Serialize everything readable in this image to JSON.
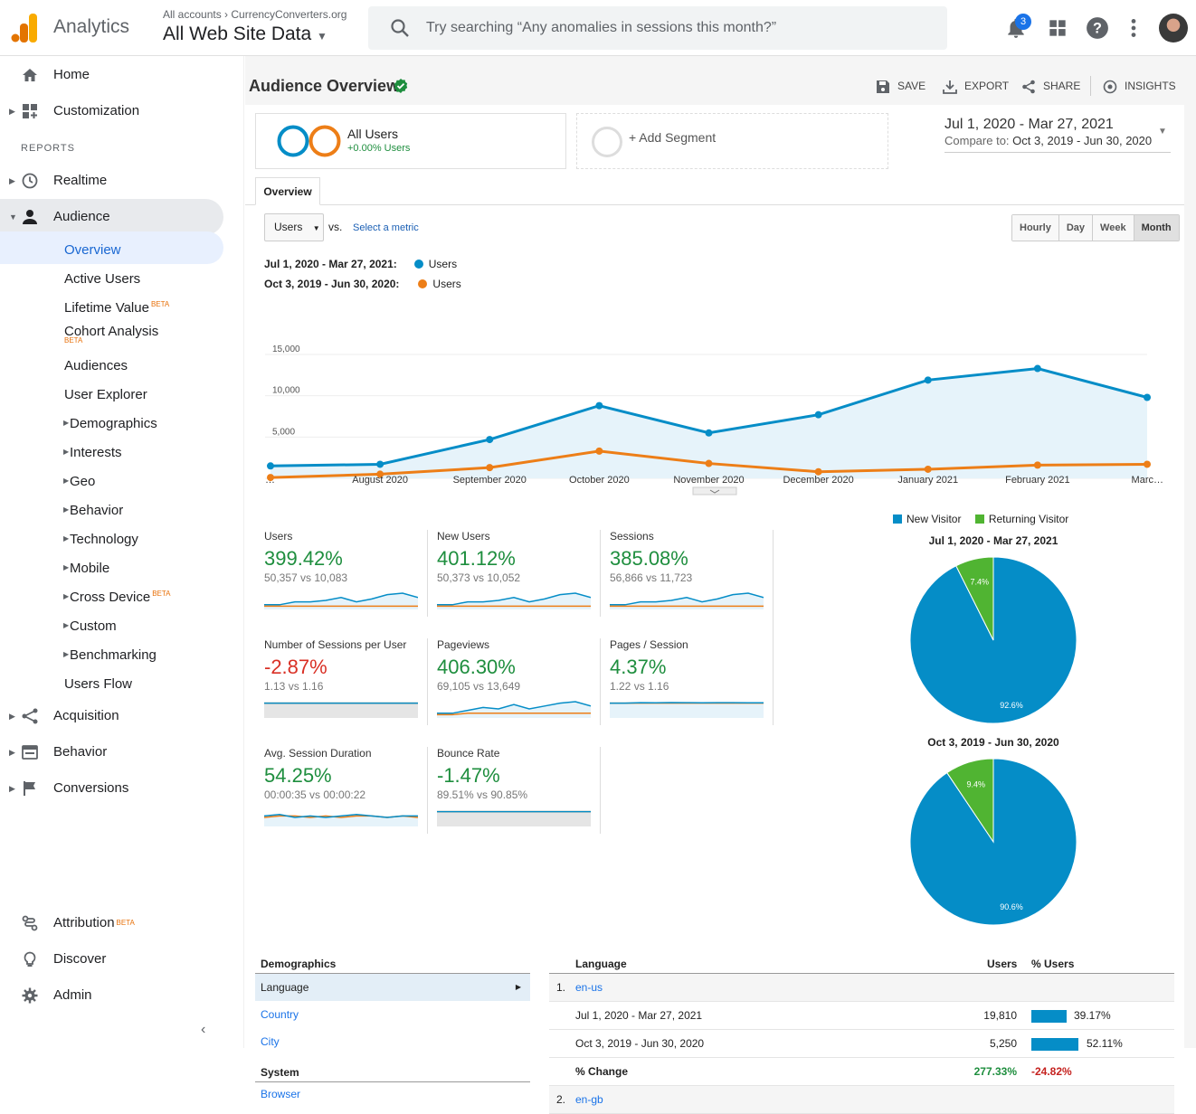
{
  "topbar": {
    "brand": "Analytics",
    "account_crumb": "All accounts › CurrencyConverters.org",
    "view_name": "All Web Site Data",
    "search_placeholder": "Try searching “Any anomalies in sessions this month?”",
    "notif_count": "3"
  },
  "sidebar": {
    "home": "Home",
    "customization": "Customization",
    "reports_heading": "REPORTS",
    "realtime": "Realtime",
    "audience": "Audience",
    "audience_items": [
      {
        "label": "Overview"
      },
      {
        "label": "Active Users"
      },
      {
        "label": "Lifetime Value",
        "beta": "BETA"
      },
      {
        "label": "Cohort Analysis",
        "beta": "BETA"
      },
      {
        "label": "Audiences"
      },
      {
        "label": "User Explorer"
      },
      {
        "label": "Demographics"
      },
      {
        "label": "Interests"
      },
      {
        "label": "Geo"
      },
      {
        "label": "Behavior"
      },
      {
        "label": "Technology"
      },
      {
        "label": "Mobile"
      },
      {
        "label": "Cross Device",
        "beta": "BETA"
      },
      {
        "label": "Custom"
      },
      {
        "label": "Benchmarking"
      },
      {
        "label": "Users Flow"
      }
    ],
    "acquisition": "Acquisition",
    "behavior": "Behavior",
    "conversions": "Conversions",
    "attribution": "Attribution",
    "attribution_beta": "BETA",
    "discover": "Discover",
    "admin": "Admin"
  },
  "page": {
    "title": "Audience Overview",
    "actions": {
      "save": "SAVE",
      "export": "EXPORT",
      "share": "SHARE",
      "insights": "INSIGHTS"
    }
  },
  "segments": {
    "all_users": "All Users",
    "all_users_sub": "+0.00% Users",
    "add_segment": "+ Add Segment"
  },
  "daterange": {
    "main": "Jul 1, 2020 - Mar 27, 2021",
    "compare_label": "Compare to:",
    "compare": "Oct 3, 2019 - Jun 30, 2020"
  },
  "tabs": {
    "overview": "Overview"
  },
  "controls": {
    "metric": "Users",
    "vs": "vs.",
    "select_metric": "Select a metric",
    "granularity": [
      "Hourly",
      "Day",
      "Week",
      "Month"
    ]
  },
  "legend": [
    {
      "range": "Jul 1, 2020 - Mar 27, 2021:",
      "series": "Users",
      "color": "#058dc7"
    },
    {
      "range": "Oct 3, 2019 - Jun 30, 2020:",
      "series": "Users",
      "color": "#ed7e17"
    }
  ],
  "chart_data": {
    "type": "line",
    "x": [
      "…",
      "August 2020",
      "September 2020",
      "October 2020",
      "November 2020",
      "December 2020",
      "January 2021",
      "February 2021",
      "Marc…"
    ],
    "series": [
      {
        "name": "Users",
        "values": [
          1500,
          1700,
          4700,
          8800,
          5500,
          7700,
          11900,
          13300,
          9800
        ]
      },
      {
        "name": "Users",
        "values": [
          100,
          500,
          1300,
          3300,
          1800,
          800,
          1100,
          1600,
          1700
        ]
      }
    ],
    "y_ticks": [
      "15,000",
      "10,000",
      "5,000"
    ],
    "ylim": [
      0,
      15000
    ]
  },
  "metrics": [
    {
      "title": "Users",
      "value": "399.42%",
      "sub": "50,357 vs 10,083",
      "color": "#1e8e3e",
      "spark": [
        [
          2,
          2,
          4,
          4,
          5,
          7,
          4,
          6,
          9,
          10,
          7
        ],
        [
          1,
          1,
          1,
          1,
          1,
          1,
          1,
          1,
          1,
          1,
          1
        ]
      ]
    },
    {
      "title": "New Users",
      "value": "401.12%",
      "sub": "50,373 vs 10,052",
      "color": "#1e8e3e",
      "spark": [
        [
          2,
          2,
          4,
          4,
          5,
          7,
          4,
          6,
          9,
          10,
          7
        ],
        [
          1,
          1,
          1,
          1,
          1,
          1,
          1,
          1,
          1,
          1,
          1
        ]
      ]
    },
    {
      "title": "Sessions",
      "value": "385.08%",
      "sub": "56,866 vs 11,723",
      "color": "#1e8e3e",
      "spark": [
        [
          2,
          2,
          4,
          4,
          5,
          7,
          4,
          6,
          9,
          10,
          7
        ],
        [
          1,
          1,
          1,
          1,
          1,
          1,
          1,
          1,
          1,
          1,
          1
        ]
      ]
    },
    {
      "title": "Number of Sessions per User",
      "value": "-2.87%",
      "sub": "1.13 vs 1.16",
      "color": "#d93025",
      "spark": [
        [
          9,
          9,
          9,
          9,
          9,
          9,
          9,
          9,
          9,
          9,
          9
        ],
        [
          9,
          9,
          9,
          9,
          9,
          9,
          9,
          9,
          9,
          9,
          9
        ]
      ]
    },
    {
      "title": "Pageviews",
      "value": "406.30%",
      "sub": "69,105 vs 13,649",
      "color": "#1e8e3e",
      "spark": [
        [
          2,
          2,
          4,
          6,
          5,
          8,
          5,
          7,
          9,
          10,
          7
        ],
        [
          1,
          1,
          2,
          2,
          2,
          2,
          2,
          2,
          2,
          2,
          2
        ]
      ]
    },
    {
      "title": "Pages / Session",
      "value": "4.37%",
      "sub": "1.22 vs 1.16",
      "color": "#1e8e3e",
      "spark": [
        [
          9,
          9,
          9.3,
          9.2,
          9.4,
          9.3,
          9.2,
          9.3,
          9.3,
          9.2,
          9.2
        ],
        [
          9,
          9,
          9,
          9,
          9,
          9,
          9,
          9,
          9,
          9,
          9
        ]
      ]
    },
    {
      "title": "Avg. Session Duration",
      "value": "54.25%",
      "sub": "00:00:35 vs 00:00:22",
      "color": "#1e8e3e",
      "spark": [
        [
          6,
          7,
          5,
          6,
          5,
          6,
          7,
          6,
          5,
          6,
          6
        ],
        [
          5,
          6,
          6,
          5,
          6,
          5,
          6,
          6,
          5,
          6,
          5
        ]
      ]
    },
    {
      "title": "Bounce Rate",
      "value": "-1.47%",
      "sub": "89.51% vs 90.85%",
      "color": "#1e8e3e",
      "spark": [
        [
          9,
          9,
          9,
          9,
          9,
          9,
          9,
          9,
          9,
          9,
          9
        ],
        [
          9,
          9,
          9,
          9,
          9,
          9,
          9,
          9,
          9,
          9,
          9
        ]
      ]
    }
  ],
  "pies": {
    "legend": [
      {
        "label": "New Visitor",
        "color": "#058dc7"
      },
      {
        "label": "Returning Visitor",
        "color": "#50b432"
      }
    ],
    "charts": [
      {
        "title": "Jul 1, 2020 - Mar 27, 2021",
        "slices": [
          {
            "label": "92.6%",
            "value": 92.6
          },
          {
            "label": "7.4%",
            "value": 7.4
          }
        ]
      },
      {
        "title": "Oct 3, 2019 - Jun 30, 2020",
        "slices": [
          {
            "label": "90.6%",
            "value": 90.6
          },
          {
            "label": "9.4%",
            "value": 9.4
          }
        ]
      }
    ]
  },
  "demographics": {
    "heading": "Demographics",
    "selected": "Language",
    "links": [
      "Country",
      "City"
    ],
    "system_heading": "System",
    "system_link": "Browser"
  },
  "lang_table": {
    "col_language": "Language",
    "col_users": "Users",
    "col_pct": "% Users",
    "row1_num": "1.",
    "row1_lang": "en-us",
    "rows": [
      {
        "label": "Jul 1, 2020 - Mar 27, 2021",
        "users": "19,810",
        "pct": "39.17%",
        "bar": 39.17
      },
      {
        "label": "Oct 3, 2019 - Jun 30, 2020",
        "users": "5,250",
        "pct": "52.11%",
        "bar": 52.11
      }
    ],
    "change_label": "% Change",
    "change_users": "277.33%",
    "change_pct": "-24.82%",
    "row2_num": "2.",
    "row2_lang": "en-gb"
  }
}
